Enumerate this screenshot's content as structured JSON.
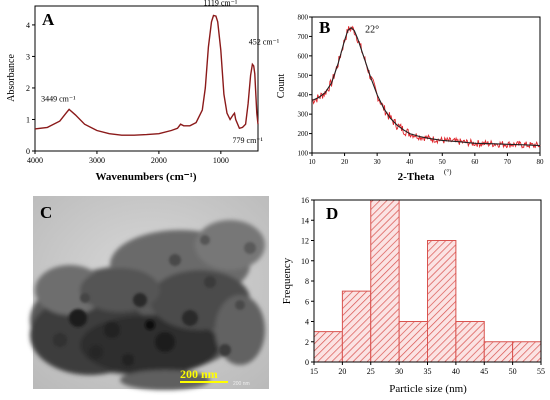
{
  "figure": {
    "panels": [
      "A",
      "B",
      "C",
      "D"
    ]
  },
  "chart_data": [
    {
      "panel": "A",
      "type": "line",
      "xlabel": "Wavenumbers (cm⁻¹)",
      "ylabel": "Absorbance",
      "xlim": [
        4000,
        400
      ],
      "ylim": [
        0,
        4.6
      ],
      "x_ticks": [
        "4000",
        "3000",
        "2000",
        "1000"
      ],
      "y_ticks": [
        "0",
        "1",
        "2",
        "3",
        "4"
      ],
      "line_color": "#8b1a1a",
      "x": [
        4000,
        3800,
        3600,
        3500,
        3449,
        3350,
        3200,
        3000,
        2800,
        2600,
        2400,
        2200,
        2000,
        1800,
        1700,
        1650,
        1600,
        1500,
        1400,
        1300,
        1250,
        1200,
        1150,
        1119,
        1080,
        1050,
        1000,
        950,
        900,
        850,
        800,
        779,
        760,
        700,
        650,
        600,
        560,
        520,
        490,
        470,
        452,
        440,
        420,
        400
      ],
      "y": [
        0.7,
        0.75,
        0.95,
        1.2,
        1.32,
        1.15,
        0.85,
        0.65,
        0.55,
        0.5,
        0.5,
        0.52,
        0.55,
        0.65,
        0.72,
        0.85,
        0.8,
        0.8,
        0.9,
        1.3,
        2.0,
        3.3,
        4.1,
        4.3,
        4.28,
        4.1,
        3.2,
        1.8,
        1.2,
        1.0,
        1.15,
        1.2,
        1.0,
        0.72,
        0.75,
        0.85,
        1.5,
        2.4,
        2.75,
        2.7,
        2.45,
        2.0,
        1.2,
        0.85
      ],
      "annotations": [
        {
          "text": "3449 cm⁻¹",
          "x": 3449,
          "y": 1.32
        },
        {
          "text": "1119 cm⁻¹",
          "x": 1119,
          "y": 4.3
        },
        {
          "text": "452 cm⁻¹",
          "x": 452,
          "y": 2.75
        },
        {
          "text": "779 cm⁻¹",
          "x": 779,
          "y": 1.2
        }
      ]
    },
    {
      "panel": "B",
      "type": "line",
      "xlabel": "2-Theta",
      "xlabel_unit": "(°)",
      "ylabel": "Count",
      "xlim": [
        10,
        80
      ],
      "ylim": [
        100,
        800
      ],
      "x_ticks": [
        "10",
        "20",
        "30",
        "40",
        "50",
        "60",
        "70",
        "80"
      ],
      "y_ticks": [
        "100",
        "200",
        "300",
        "400",
        "500",
        "600",
        "700",
        "800"
      ],
      "line_color": "#222222",
      "noise_color": "#e0242a",
      "x": [
        10,
        12,
        14,
        16,
        18,
        20,
        21,
        22,
        23,
        24,
        26,
        28,
        30,
        32,
        34,
        36,
        38,
        40,
        43,
        46,
        50,
        55,
        60,
        65,
        70,
        75,
        80
      ],
      "y": [
        370,
        385,
        410,
        460,
        560,
        680,
        730,
        745,
        730,
        690,
        590,
        490,
        400,
        330,
        280,
        245,
        220,
        200,
        185,
        175,
        165,
        158,
        150,
        148,
        145,
        142,
        138
      ],
      "annotations": [
        {
          "text": "22°",
          "x": 22,
          "y": 745
        }
      ]
    },
    {
      "panel": "D",
      "type": "bar",
      "xlabel": "Particle size (nm)",
      "ylabel": "Frequency",
      "xlim": [
        15,
        55
      ],
      "ylim": [
        0,
        16
      ],
      "x_ticks": [
        "15",
        "20",
        "25",
        "30",
        "35",
        "40",
        "45",
        "50",
        "55"
      ],
      "y_ticks": [
        "0",
        "2",
        "4",
        "6",
        "8",
        "10",
        "12",
        "14",
        "16"
      ],
      "bin_edges": [
        15,
        20,
        25,
        30,
        35,
        40,
        45,
        50,
        55
      ],
      "values": [
        3,
        7,
        16,
        4,
        12,
        4,
        2,
        2
      ],
      "bar_color": "#d9534f"
    }
  ],
  "image_c": {
    "label": "C",
    "scalebar_label": "200 nm",
    "scalebar_small": "200 nm",
    "scalebar_color": "#ffff00"
  }
}
